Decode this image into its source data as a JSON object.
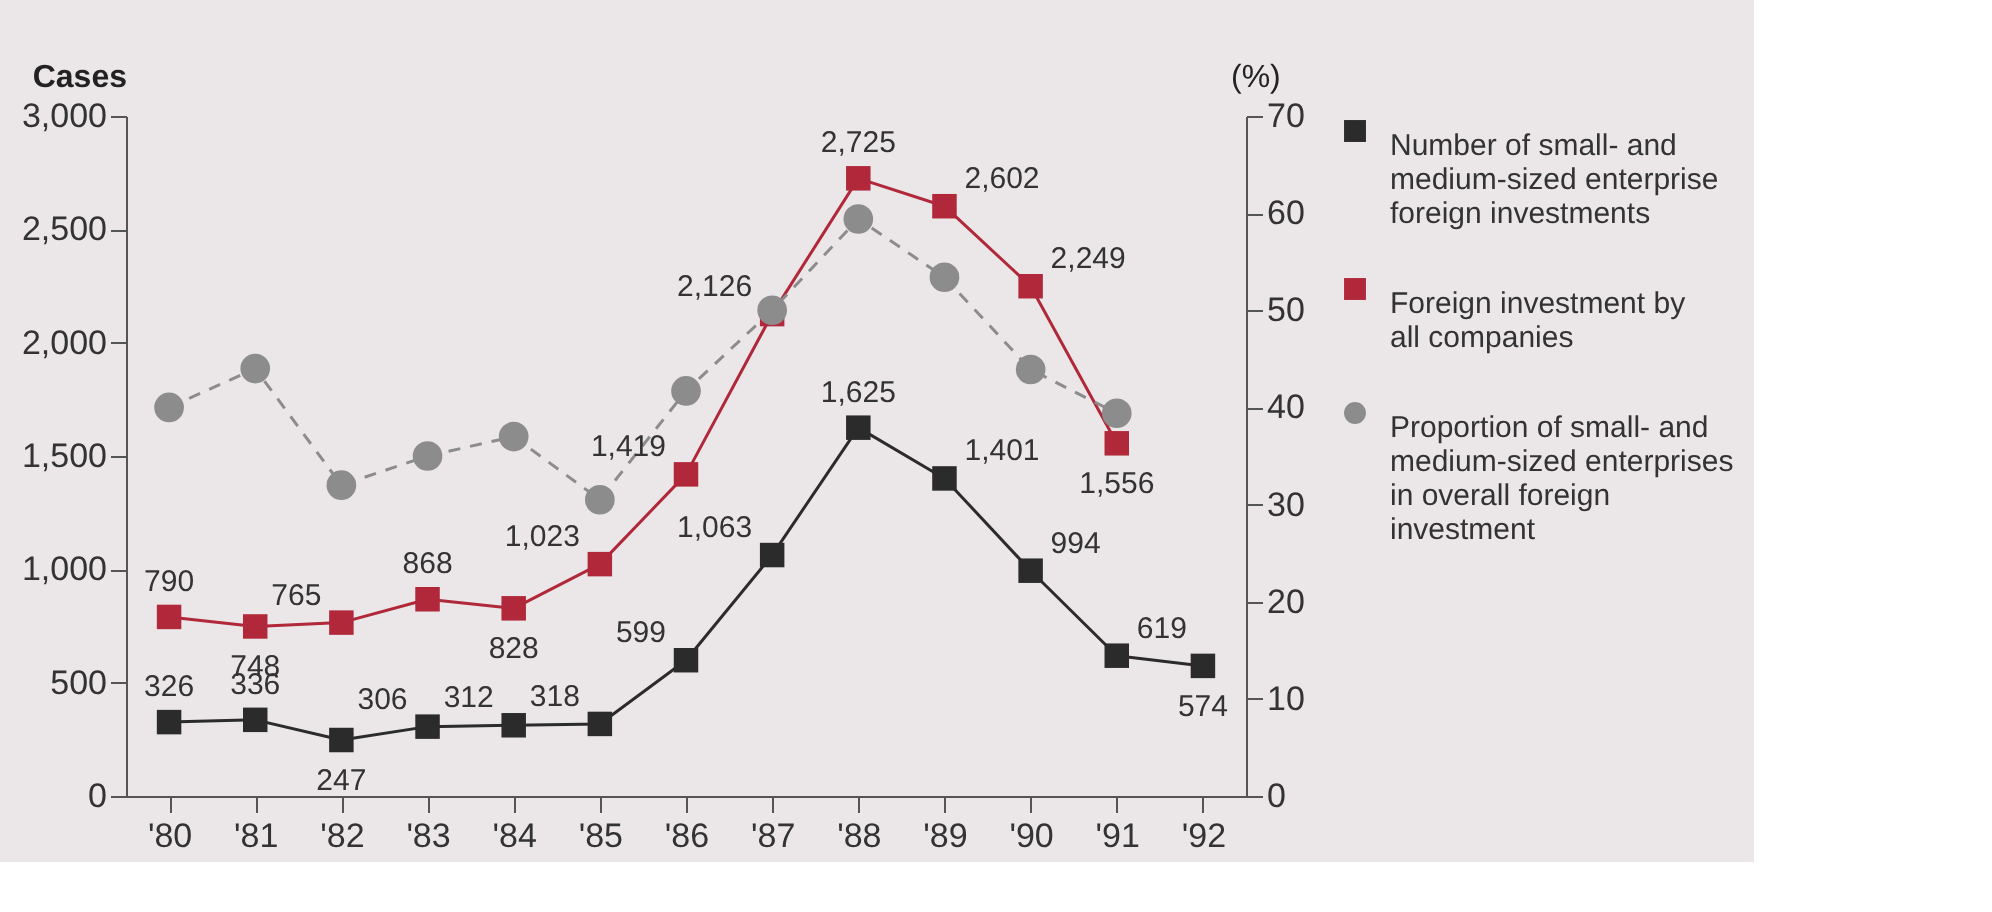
{
  "chart_data": {
    "type": "line",
    "categories": [
      "'80",
      "'81",
      "'82",
      "'83",
      "'84",
      "'85",
      "'86",
      "'87",
      "'88",
      "'89",
      "'90",
      "'91",
      "'92"
    ],
    "ylabel": "Cases",
    "y2label": "(%)",
    "ylim": [
      0,
      3000
    ],
    "yticks": [
      0,
      500,
      {
        "value": 1000,
        "label": "1,000"
      },
      {
        "value": 1500,
        "label": "1,500"
      },
      {
        "value": 2000,
        "label": "2,000"
      },
      {
        "value": 2500,
        "label": "2,500"
      },
      {
        "value": 3000,
        "label": "3,000"
      }
    ],
    "y2lim": [
      0,
      70
    ],
    "y2ticks": [
      0,
      10,
      20,
      30,
      40,
      50,
      60,
      70
    ],
    "grid": false,
    "legend": "right",
    "series": [
      {
        "name": "Number of small- and medium-sized enterprise foreign investments",
        "color": "#2b2b2b",
        "marker": "square",
        "line_style": "solid",
        "data_labels": true,
        "values": [
          326,
          336,
          247,
          306,
          312,
          318,
          599,
          1063,
          1625,
          1401,
          994,
          619,
          574
        ],
        "value_labels": [
          "326",
          "336",
          "247",
          "306",
          "312",
          "318",
          "599",
          "1,063",
          "1,625",
          "1,401",
          "994",
          "619",
          "574"
        ]
      },
      {
        "name": "Foreign investment by all companies",
        "color": "#b0283a",
        "marker": "square",
        "line_style": "solid",
        "data_labels": true,
        "values": [
          790,
          748,
          765,
          868,
          828,
          1023,
          1419,
          2126,
          2725,
          2602,
          2249,
          1556,
          null
        ],
        "value_labels": [
          "790",
          "748",
          "765",
          "868",
          "828",
          "1,023",
          "1,419",
          "2,126",
          "2,725",
          "2,602",
          "2,249",
          "1,556",
          null
        ]
      },
      {
        "name": "Proportion of small- and medium-sized enterprises in overall foreign investment",
        "color": "#8c8c8c",
        "marker": "circle",
        "line_style": "dashed",
        "axis": "y2",
        "values": [
          40,
          44,
          32,
          35,
          37,
          30.5,
          41.7,
          50,
          59.4,
          53.4,
          43.9,
          39.4,
          null
        ]
      }
    ]
  }
}
